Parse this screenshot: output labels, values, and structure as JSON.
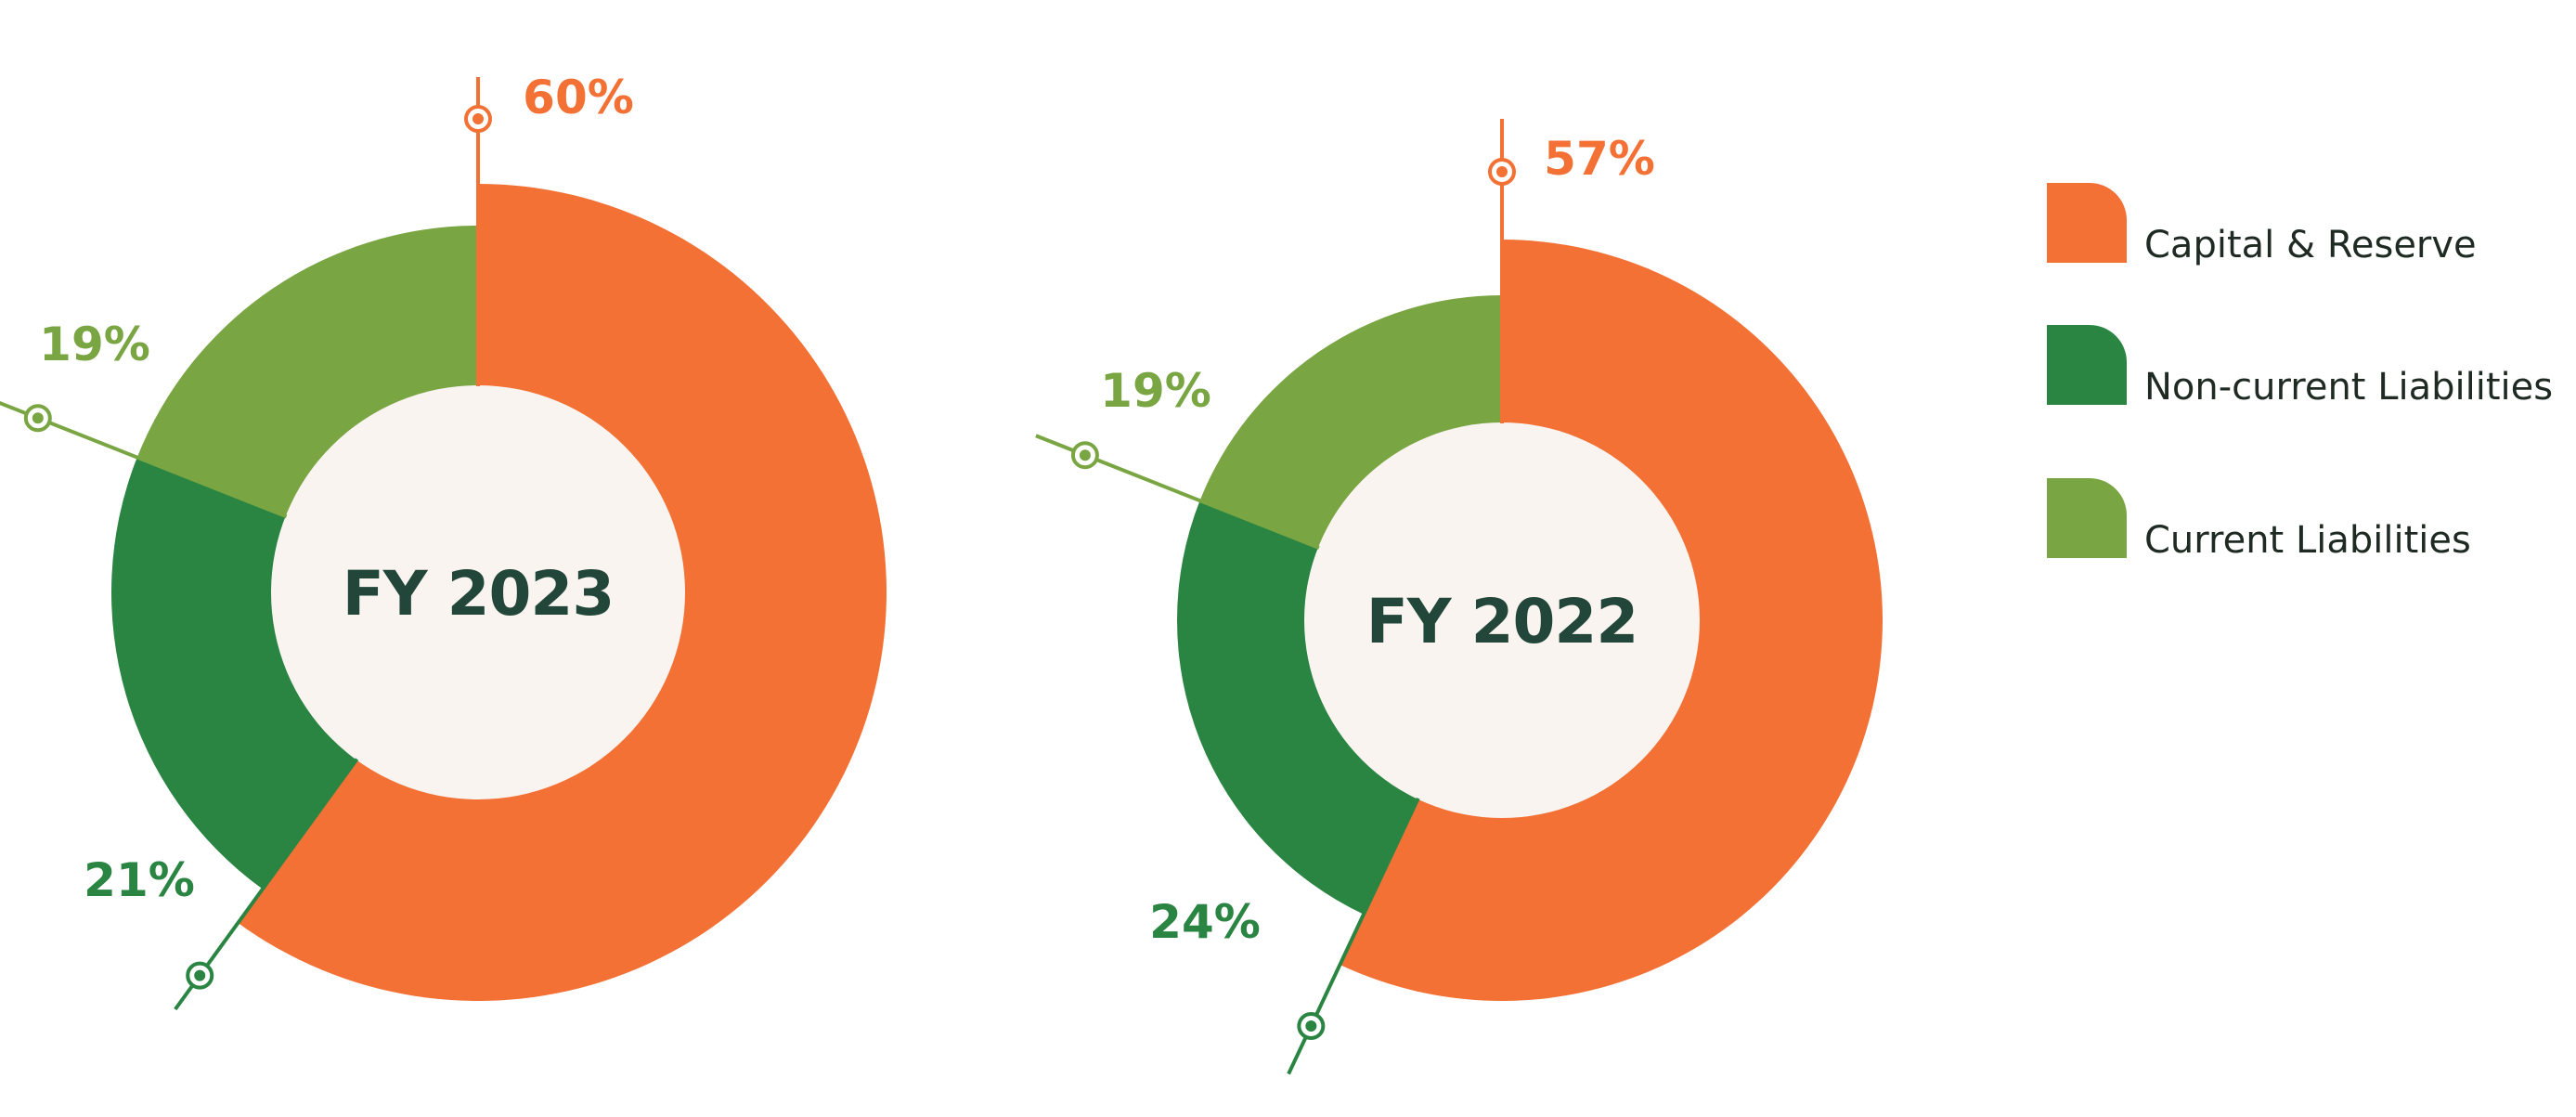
{
  "colors": {
    "capital_reserve": "#f37135",
    "non_current": "#2a8442",
    "current": "#79a543",
    "center_fill": "#faf4f1",
    "center_text": "#22473a"
  },
  "legend": [
    {
      "label": "Capital & Reserve",
      "color_key": "capital_reserve"
    },
    {
      "label": "Non-current Liabilities",
      "color_key": "non_current"
    },
    {
      "label": "Current Liabilities",
      "color_key": "current"
    }
  ],
  "chart_data": [
    {
      "type": "pie",
      "variant": "donut",
      "center_label": "FY 2023",
      "slices": [
        {
          "name": "Capital & Reserve",
          "value": 60,
          "label": "60%",
          "color_key": "capital_reserve"
        },
        {
          "name": "Non-current Liabilities",
          "value": 21,
          "label": "21%",
          "color_key": "non_current"
        },
        {
          "name": "Current Liabilities",
          "value": 19,
          "label": "19%",
          "color_key": "current"
        }
      ]
    },
    {
      "type": "pie",
      "variant": "donut",
      "center_label": "FY 2022",
      "slices": [
        {
          "name": "Capital & Reserve",
          "value": 57,
          "label": "57%",
          "color_key": "capital_reserve"
        },
        {
          "name": "Non-current Liabilities",
          "value": 24,
          "label": "24%",
          "color_key": "non_current"
        },
        {
          "name": "Current Liabilities",
          "value": 19,
          "label": "19%",
          "color_key": "current"
        }
      ]
    }
  ]
}
